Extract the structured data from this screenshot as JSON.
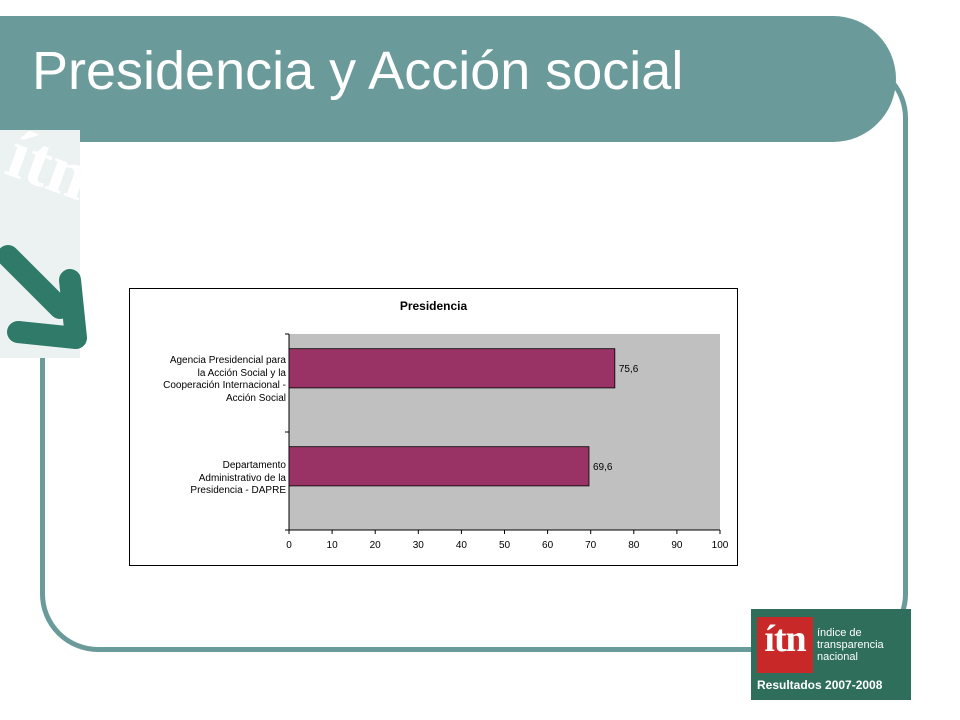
{
  "slide": {
    "title": "Presidencia y Acción social",
    "watermark_text": "ítn"
  },
  "logo": {
    "mark": "ítn",
    "lines": [
      "índice de",
      "transparencia",
      "nacional"
    ],
    "results": "Resultados 2007-2008"
  },
  "colors": {
    "theme": "#6a9a99",
    "bar": "#993366",
    "plot_area": "#c0c0c0"
  },
  "chart_data": {
    "type": "bar",
    "orientation": "horizontal",
    "title": "Presidencia",
    "categories": [
      "Agencia Presidencial para la Acción Social y la Cooperación Internacional - Acción Social",
      "Departamento Administrativo de la Presidencia - DAPRE"
    ],
    "category_lines": [
      [
        "Agencia Presidencial para",
        "la Acción Social y la",
        "Cooperación Internacional -",
        "Acción Social"
      ],
      [
        "Departamento",
        "Administrativo de la",
        "Presidencia - DAPRE"
      ]
    ],
    "values": [
      75.6,
      69.6
    ],
    "data_labels": [
      "75,6",
      "69,6"
    ],
    "xlim": [
      0,
      100
    ],
    "xticks": [
      0,
      10,
      20,
      30,
      40,
      50,
      60,
      70,
      80,
      90,
      100
    ],
    "grid": false,
    "legend": "none",
    "xlabel": "",
    "ylabel": ""
  }
}
